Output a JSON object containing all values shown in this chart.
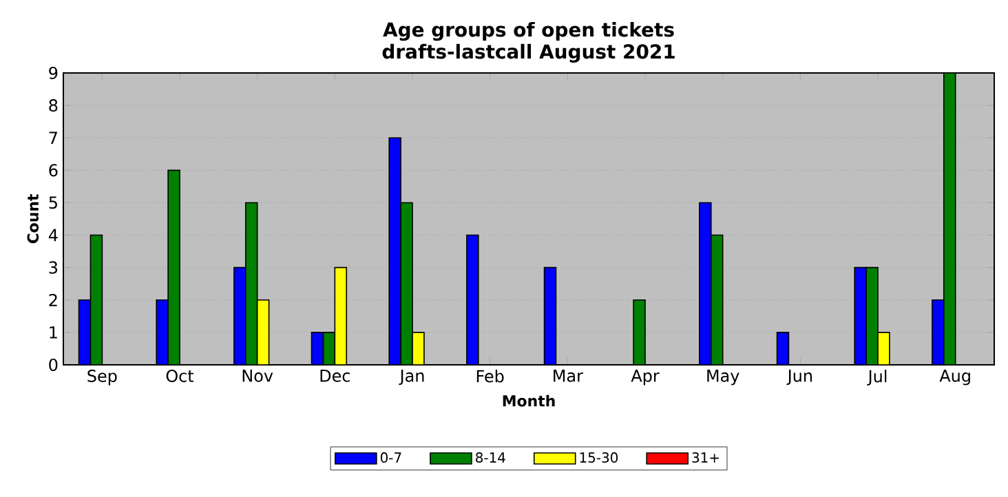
{
  "chart_data": {
    "type": "bar",
    "title": "Age groups of open tickets\ndrafts-lastcall August 2021",
    "xlabel": "Month",
    "ylabel": "Count",
    "categories": [
      "Sep",
      "Oct",
      "Nov",
      "Dec",
      "Jan",
      "Feb",
      "Mar",
      "Apr",
      "May",
      "Jun",
      "Jul",
      "Aug"
    ],
    "series": [
      {
        "name": "0-7",
        "color": "#0000ff",
        "values": [
          2,
          2,
          3,
          1,
          7,
          4,
          3,
          0,
          5,
          1,
          3,
          2
        ]
      },
      {
        "name": "8-14",
        "color": "#008000",
        "values": [
          4,
          6,
          5,
          1,
          5,
          0,
          0,
          2,
          4,
          0,
          3,
          9
        ]
      },
      {
        "name": "15-30",
        "color": "#ffff00",
        "values": [
          0,
          0,
          2,
          3,
          1,
          0,
          0,
          0,
          0,
          0,
          1,
          0
        ]
      },
      {
        "name": "31+",
        "color": "#ff0000",
        "values": [
          0,
          0,
          0,
          0,
          0,
          0,
          0,
          0,
          0,
          0,
          0,
          0
        ]
      }
    ],
    "ylim": [
      0,
      9
    ],
    "yticks": [
      0,
      1,
      2,
      3,
      4,
      5,
      6,
      7,
      8,
      9
    ],
    "grid": "y",
    "legend": "bottom"
  }
}
